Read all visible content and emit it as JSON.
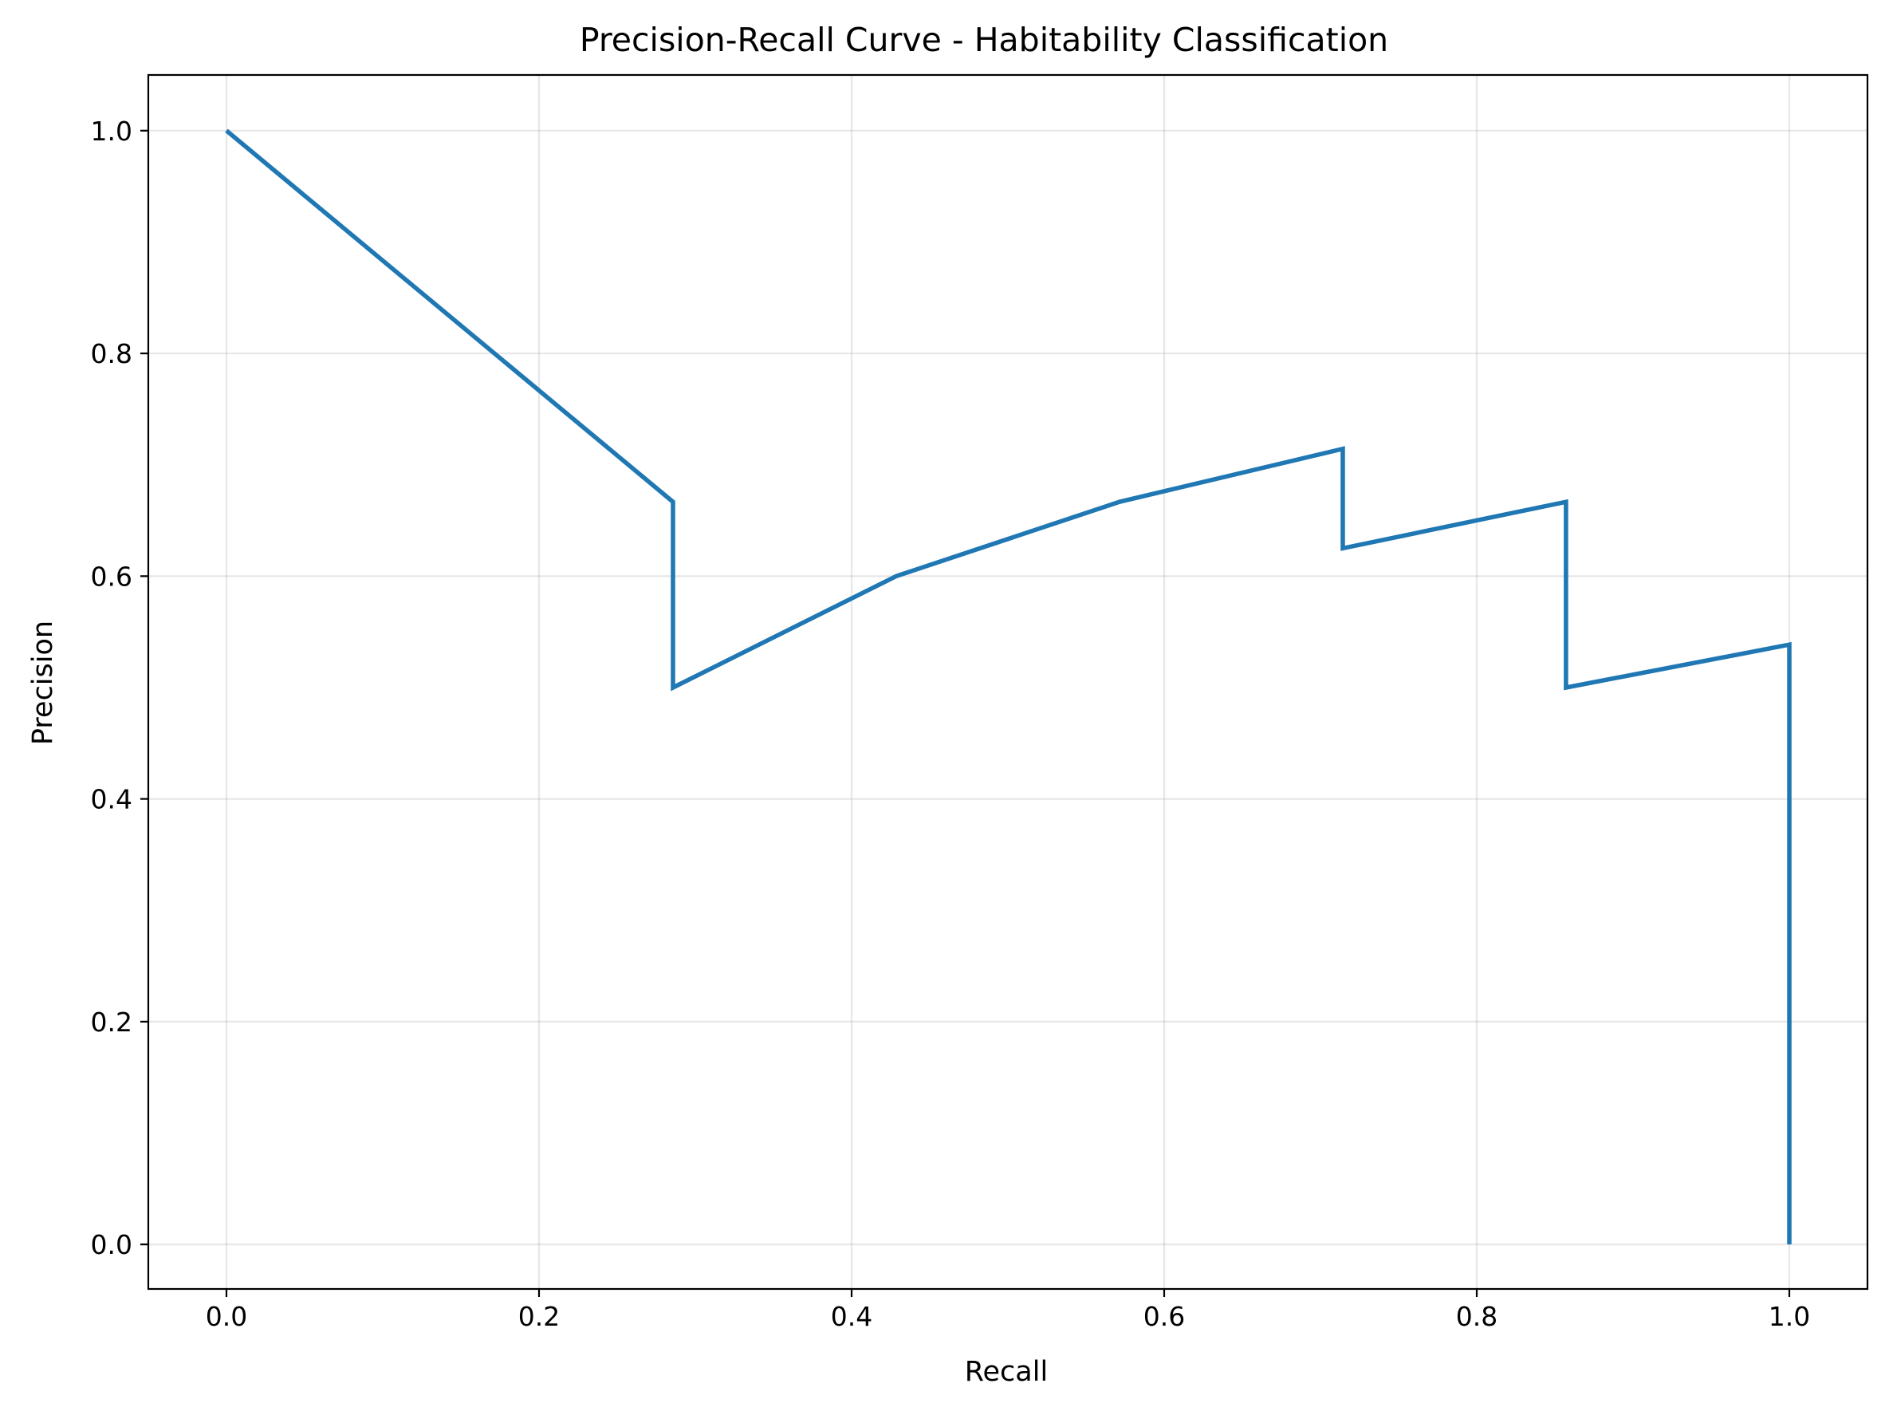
{
  "chart_data": {
    "type": "line",
    "title": "Precision-Recall Curve - Habitability Classification",
    "xlabel": "Recall",
    "ylabel": "Precision",
    "xlim": [
      -0.05,
      1.05
    ],
    "ylim": [
      -0.04,
      1.05
    ],
    "xticks": [
      0.0,
      0.2,
      0.4,
      0.6,
      0.8,
      1.0
    ],
    "yticks": [
      0.0,
      0.2,
      0.4,
      0.6,
      0.8,
      1.0
    ],
    "xtick_labels": [
      "0.0",
      "0.2",
      "0.4",
      "0.6",
      "0.8",
      "1.0"
    ],
    "ytick_labels": [
      "0.0",
      "0.2",
      "0.4",
      "0.6",
      "0.8",
      "1.0"
    ],
    "grid": true,
    "color": "#1f77b4",
    "series": [
      {
        "x": [
          0.0,
          0.2857,
          0.2857,
          0.4286,
          0.5714,
          0.7143,
          0.7143,
          0.8571,
          0.8571,
          1.0,
          1.0
        ],
        "y": [
          1.0,
          0.6667,
          0.5,
          0.6,
          0.6667,
          0.7143,
          0.625,
          0.6667,
          0.5,
          0.5385,
          0.0
        ]
      }
    ]
  }
}
